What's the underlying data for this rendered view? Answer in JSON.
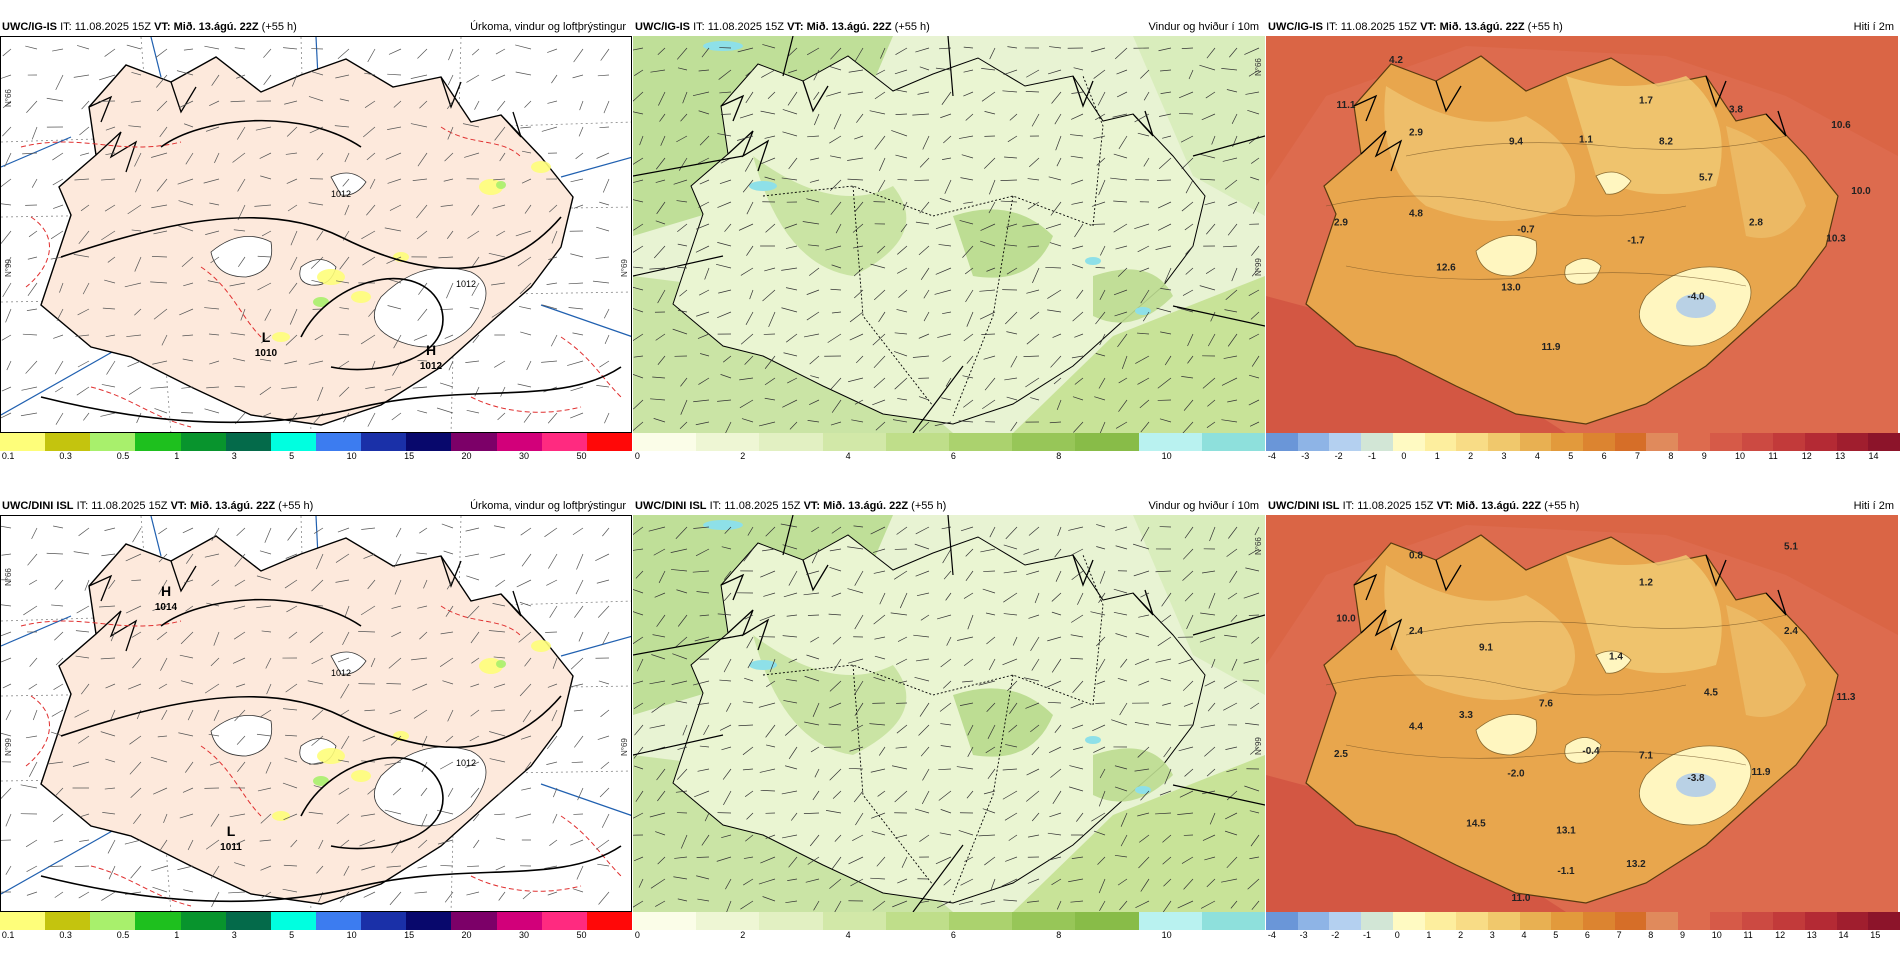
{
  "colors": {
    "land_precip": "#fde9dc",
    "sea_precip": "#ffffff",
    "wind_bg": "#e8f3d3",
    "wind_land": "#cfe6a9",
    "temp_sea": "#dd6b4e",
    "temp_land": "#e8a64d",
    "temp_high": "#f3d57f",
    "temp_ice": "#fff6c0"
  },
  "precip_scale": {
    "colors": [
      "#fefe7a",
      "#c4c40e",
      "#a8f06c",
      "#1ec01e",
      "#08942d",
      "#046a4a",
      "#00ffe0",
      "#3c7cf0",
      "#1a30a8",
      "#08086c",
      "#7c0068",
      "#d2007a",
      "#ff2a80",
      "#ff0808"
    ],
    "ticks": [
      "0.1",
      "0.3",
      "0.5",
      "1",
      "3",
      "5",
      "10",
      "15",
      "20",
      "30",
      "50"
    ]
  },
  "wind_scale": {
    "colors": [
      "#fbfde8",
      "#eef6d4",
      "#e2f0c2",
      "#d2e8a8",
      "#bfde8a",
      "#abd26e",
      "#97c658",
      "#88bc48",
      "#b9f2f0",
      "#8ee0dc"
    ],
    "ticks": [
      "0",
      "2",
      "4",
      "6",
      "8",
      "10"
    ]
  },
  "temp_top_scale": {
    "colors": [
      "#6a96d8",
      "#8eb4e6",
      "#b4d0f0",
      "#d2e6d6",
      "#fffac2",
      "#fdee9e",
      "#f8dc86",
      "#f0c86c",
      "#e8b052",
      "#e29a3c",
      "#dc8430",
      "#d66e28",
      "#e08a5c",
      "#dd6b4e",
      "#d65a48",
      "#cc4a42",
      "#c23a3a",
      "#b42a34",
      "#a01e2e",
      "#8c142a"
    ],
    "ticks": [
      "-4",
      "-3",
      "-2",
      "-1",
      "0",
      "1",
      "2",
      "3",
      "4",
      "5",
      "6",
      "7",
      "8",
      "9",
      "10",
      "11",
      "12",
      "13",
      "14"
    ]
  },
  "temp_bottom_scale": {
    "colors": [
      "#6a96d8",
      "#8eb4e6",
      "#b4d0f0",
      "#d2e6d6",
      "#fffac2",
      "#fdee9e",
      "#f8dc86",
      "#f0c86c",
      "#e8b052",
      "#e29a3c",
      "#dc8430",
      "#d66e28",
      "#e08a5c",
      "#dd6b4e",
      "#d65a48",
      "#cc4a42",
      "#c23a3a",
      "#b42a34",
      "#a01e2e",
      "#8c142a"
    ],
    "ticks": [
      "-4",
      "-3",
      "-2",
      "-1",
      "0",
      "1",
      "2",
      "3",
      "4",
      "5",
      "6",
      "7",
      "8",
      "9",
      "10",
      "11",
      "12",
      "13",
      "14",
      "15"
    ]
  },
  "rows": [
    {
      "model": "UWC/IG-IS",
      "panels": [
        {
          "it_prefix": "IT:",
          "it_value": "11.08.2025 15Z",
          "vt_prefix": "VT:",
          "vt_value": "Mið. 13.ágú. 22Z",
          "lead": "(+55 h)",
          "field": "Úrkoma, vindur og loftþrýstingur",
          "lat_labels": [
            "N°66",
            "N°99",
            "N°69"
          ],
          "isobar_labels": [
            "1012",
            "1012"
          ],
          "centers": [
            {
              "type": "L",
              "value": "1010"
            },
            {
              "type": "H",
              "value": "1012"
            }
          ]
        },
        {
          "it_prefix": "IT:",
          "it_value": "11.08.2025 15Z",
          "vt_prefix": "VT:",
          "vt_value": "Mið. 13.ágú. 22Z",
          "lead": "(+55 h)",
          "field": "Vindur og hviður í 10m",
          "lat_labels": [
            "N°66",
            "N°99"
          ]
        },
        {
          "it_prefix": "IT:",
          "it_value": "11.08.2025 15Z",
          "vt_prefix": "VT:",
          "vt_value": "Mið. 13.ágú. 22Z",
          "lead": "(+55 h)",
          "field": "Hiti í 2m",
          "points": [
            "4.2",
            "11.1",
            "2.9",
            "9.4",
            "1.1",
            "1.7",
            "3.8",
            "8.2",
            "10.6",
            "5.7",
            "10.0",
            "4.8",
            "2.9",
            "-0.7",
            "-1.7",
            "2.8",
            "10.3",
            "12.6",
            "13.0",
            "-4.0",
            "11.9"
          ]
        }
      ]
    },
    {
      "model": "UWC/DINI ISL",
      "panels": [
        {
          "it_prefix": "IT:",
          "it_value": "11.08.2025 15Z",
          "vt_prefix": "VT:",
          "vt_value": "Mið. 13.ágú. 22Z",
          "lead": "(+55 h)",
          "field": "Úrkoma, vindur og loftþrýstingur",
          "lat_labels": [
            "N°66",
            "N°99",
            "N°69"
          ],
          "isobar_labels": [
            "1012",
            "1012"
          ],
          "centers": [
            {
              "type": "H",
              "value": "1014"
            },
            {
              "type": "L",
              "value": "1011"
            }
          ]
        },
        {
          "it_prefix": "IT:",
          "it_value": "11.08.2025 15Z",
          "vt_prefix": "VT:",
          "vt_value": "Mið. 13.ágú. 22Z",
          "lead": "(+55 h)",
          "field": "Vindur og hviður í 10m",
          "lat_labels": [
            "N°66",
            "N°99"
          ]
        },
        {
          "it_prefix": "IT:",
          "it_value": "11.08.2025 15Z",
          "vt_prefix": "VT:",
          "vt_value": "Mið. 13.ágú. 22Z",
          "lead": "(+55 h)",
          "field": "Hiti í 2m",
          "points": [
            "0.8",
            "5.1",
            "1.2",
            "10.0",
            "2.4",
            "2.4",
            "9.1",
            "1.4",
            "4.5",
            "11.3",
            "3.3",
            "7.6",
            "4.4",
            "2.5",
            "-2.0",
            "-0.4",
            "7.1",
            "-3.8",
            "11.9",
            "14.5",
            "13.1",
            "13.2",
            "-1.1",
            "11.0"
          ]
        }
      ]
    }
  ]
}
